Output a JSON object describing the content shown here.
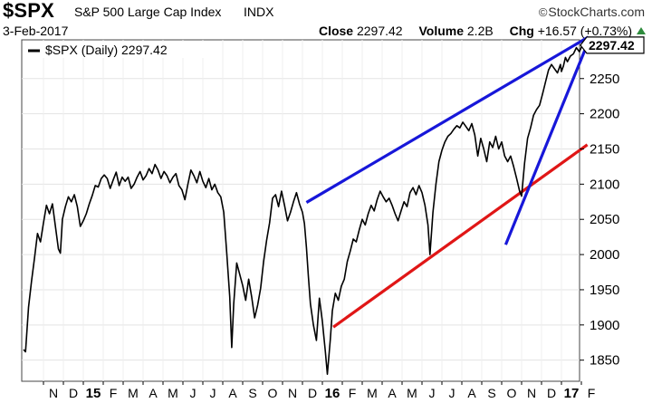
{
  "header": {
    "ticker": "$SPX",
    "index_name": "S&P 500 Large Cap Index",
    "index_type": "INDX",
    "brand": "StockCharts.com",
    "date": "3-Feb-2017",
    "close_label": "Close",
    "close_value": "2297.42",
    "volume_label": "Volume",
    "volume_value": "2.2B",
    "chg_label": "Chg",
    "chg_value": "+16.57 (+0.73%)",
    "chg_direction_icon": "up-triangle-icon",
    "chg_color": "#2e8b3d"
  },
  "chart_data": {
    "type": "line",
    "legend": "$SPX (Daily) 2297.42",
    "legend_placement": "top-left",
    "last_value_label": "2297.42",
    "y_axis_side": "right",
    "ylim": [
      1820,
      2305
    ],
    "y_ticks": [
      1850,
      1900,
      1950,
      2000,
      2050,
      2100,
      2150,
      2200,
      2250
    ],
    "x_range": [
      0,
      27.3
    ],
    "x_ticks": [
      {
        "m": 1,
        "label": "N"
      },
      {
        "m": 2,
        "label": "D"
      },
      {
        "m": 3,
        "label": "15",
        "year": true
      },
      {
        "m": 4,
        "label": "F"
      },
      {
        "m": 5,
        "label": "M"
      },
      {
        "m": 6,
        "label": "A"
      },
      {
        "m": 7,
        "label": "M"
      },
      {
        "m": 8,
        "label": "J"
      },
      {
        "m": 9,
        "label": "J"
      },
      {
        "m": 10,
        "label": "A"
      },
      {
        "m": 11,
        "label": "S"
      },
      {
        "m": 12,
        "label": "O"
      },
      {
        "m": 13,
        "label": "N"
      },
      {
        "m": 14,
        "label": "D"
      },
      {
        "m": 15,
        "label": "16",
        "year": true
      },
      {
        "m": 16,
        "label": "F"
      },
      {
        "m": 17,
        "label": "M"
      },
      {
        "m": 18,
        "label": "A"
      },
      {
        "m": 19,
        "label": "M"
      },
      {
        "m": 20,
        "label": "J"
      },
      {
        "m": 21,
        "label": "J"
      },
      {
        "m": 22,
        "label": "A"
      },
      {
        "m": 23,
        "label": "S"
      },
      {
        "m": 24,
        "label": "O"
      },
      {
        "m": 25,
        "label": "N"
      },
      {
        "m": 26,
        "label": "D"
      },
      {
        "m": 27,
        "label": "17",
        "year": true
      },
      {
        "m": 28,
        "label": "F"
      }
    ],
    "series": [
      {
        "color": "#000000",
        "points": [
          [
            0.0,
            1865
          ],
          [
            0.1,
            1862
          ],
          [
            0.25,
            1925
          ],
          [
            0.4,
            1962
          ],
          [
            0.55,
            1995
          ],
          [
            0.7,
            2030
          ],
          [
            0.85,
            2018
          ],
          [
            1.0,
            2045
          ],
          [
            1.15,
            2070
          ],
          [
            1.3,
            2058
          ],
          [
            1.45,
            2072
          ],
          [
            1.6,
            2040
          ],
          [
            1.75,
            2008
          ],
          [
            1.85,
            2002
          ],
          [
            1.95,
            2050
          ],
          [
            2.1,
            2068
          ],
          [
            2.25,
            2082
          ],
          [
            2.4,
            2075
          ],
          [
            2.55,
            2085
          ],
          [
            2.7,
            2068
          ],
          [
            2.85,
            2040
          ],
          [
            3.0,
            2048
          ],
          [
            3.15,
            2058
          ],
          [
            3.3,
            2072
          ],
          [
            3.45,
            2084
          ],
          [
            3.6,
            2098
          ],
          [
            3.75,
            2096
          ],
          [
            3.9,
            2108
          ],
          [
            4.05,
            2113
          ],
          [
            4.2,
            2108
          ],
          [
            4.35,
            2094
          ],
          [
            4.5,
            2106
          ],
          [
            4.65,
            2117
          ],
          [
            4.8,
            2098
          ],
          [
            4.95,
            2110
          ],
          [
            5.1,
            2104
          ],
          [
            5.25,
            2110
          ],
          [
            5.4,
            2094
          ],
          [
            5.55,
            2100
          ],
          [
            5.7,
            2110
          ],
          [
            5.85,
            2118
          ],
          [
            6.0,
            2106
          ],
          [
            6.15,
            2112
          ],
          [
            6.3,
            2122
          ],
          [
            6.45,
            2115
          ],
          [
            6.6,
            2128
          ],
          [
            6.75,
            2120
          ],
          [
            6.9,
            2108
          ],
          [
            7.05,
            2118
          ],
          [
            7.2,
            2112
          ],
          [
            7.35,
            2102
          ],
          [
            7.5,
            2110
          ],
          [
            7.65,
            2115
          ],
          [
            7.8,
            2098
          ],
          [
            7.95,
            2092
          ],
          [
            8.1,
            2078
          ],
          [
            8.25,
            2100
          ],
          [
            8.4,
            2120
          ],
          [
            8.55,
            2112
          ],
          [
            8.7,
            2102
          ],
          [
            8.85,
            2118
          ],
          [
            9.0,
            2104
          ],
          [
            9.15,
            2095
          ],
          [
            9.3,
            2108
          ],
          [
            9.45,
            2092
          ],
          [
            9.6,
            2100
          ],
          [
            9.75,
            2088
          ],
          [
            9.9,
            2082
          ],
          [
            10.05,
            2060
          ],
          [
            10.2,
            2002
          ],
          [
            10.35,
            1940
          ],
          [
            10.45,
            1868
          ],
          [
            10.55,
            1930
          ],
          [
            10.7,
            1988
          ],
          [
            10.85,
            1972
          ],
          [
            11.0,
            1956
          ],
          [
            11.15,
            1935
          ],
          [
            11.3,
            1965
          ],
          [
            11.45,
            1940
          ],
          [
            11.6,
            1910
          ],
          [
            11.75,
            1928
          ],
          [
            11.9,
            1952
          ],
          [
            12.05,
            1990
          ],
          [
            12.2,
            2020
          ],
          [
            12.35,
            2045
          ],
          [
            12.5,
            2080
          ],
          [
            12.65,
            2085
          ],
          [
            12.8,
            2068
          ],
          [
            12.95,
            2090
          ],
          [
            13.1,
            2070
          ],
          [
            13.25,
            2048
          ],
          [
            13.4,
            2060
          ],
          [
            13.55,
            2075
          ],
          [
            13.7,
            2088
          ],
          [
            13.85,
            2072
          ],
          [
            14.0,
            2060
          ],
          [
            14.1,
            2044
          ],
          [
            14.2,
            2010
          ],
          [
            14.3,
            1968
          ],
          [
            14.4,
            1930
          ],
          [
            14.55,
            1900
          ],
          [
            14.7,
            1878
          ],
          [
            14.85,
            1938
          ],
          [
            15.0,
            1905
          ],
          [
            15.15,
            1862
          ],
          [
            15.25,
            1830
          ],
          [
            15.4,
            1880
          ],
          [
            15.5,
            1920
          ],
          [
            15.65,
            1945
          ],
          [
            15.8,
            1935
          ],
          [
            15.95,
            1955
          ],
          [
            16.1,
            1965
          ],
          [
            16.25,
            1990
          ],
          [
            16.4,
            2005
          ],
          [
            16.55,
            2022
          ],
          [
            16.7,
            2018
          ],
          [
            16.85,
            2035
          ],
          [
            17.0,
            2050
          ],
          [
            17.15,
            2042
          ],
          [
            17.3,
            2058
          ],
          [
            17.45,
            2070
          ],
          [
            17.6,
            2062
          ],
          [
            17.75,
            2078
          ],
          [
            17.9,
            2090
          ],
          [
            18.05,
            2082
          ],
          [
            18.2,
            2075
          ],
          [
            18.35,
            2080
          ],
          [
            18.5,
            2070
          ],
          [
            18.65,
            2058
          ],
          [
            18.8,
            2048
          ],
          [
            18.95,
            2062
          ],
          [
            19.1,
            2075
          ],
          [
            19.25,
            2068
          ],
          [
            19.4,
            2088
          ],
          [
            19.55,
            2095
          ],
          [
            19.7,
            2085
          ],
          [
            19.85,
            2098
          ],
          [
            20.0,
            2088
          ],
          [
            20.15,
            2070
          ],
          [
            20.3,
            2042
          ],
          [
            20.4,
            2000
          ],
          [
            20.55,
            2060
          ],
          [
            20.7,
            2100
          ],
          [
            20.85,
            2132
          ],
          [
            21.0,
            2148
          ],
          [
            21.15,
            2160
          ],
          [
            21.3,
            2168
          ],
          [
            21.45,
            2172
          ],
          [
            21.6,
            2178
          ],
          [
            21.75,
            2183
          ],
          [
            21.9,
            2180
          ],
          [
            22.05,
            2188
          ],
          [
            22.2,
            2182
          ],
          [
            22.35,
            2176
          ],
          [
            22.5,
            2186
          ],
          [
            22.65,
            2170
          ],
          [
            22.8,
            2140
          ],
          [
            22.95,
            2165
          ],
          [
            23.1,
            2150
          ],
          [
            23.25,
            2132
          ],
          [
            23.4,
            2160
          ],
          [
            23.55,
            2152
          ],
          [
            23.7,
            2168
          ],
          [
            23.85,
            2150
          ],
          [
            24.0,
            2160
          ],
          [
            24.15,
            2140
          ],
          [
            24.3,
            2132
          ],
          [
            24.45,
            2140
          ],
          [
            24.6,
            2125
          ],
          [
            24.75,
            2108
          ],
          [
            24.9,
            2090
          ],
          [
            25.0,
            2083
          ],
          [
            25.15,
            2130
          ],
          [
            25.3,
            2165
          ],
          [
            25.45,
            2180
          ],
          [
            25.6,
            2198
          ],
          [
            25.75,
            2206
          ],
          [
            25.9,
            2212
          ],
          [
            26.05,
            2228
          ],
          [
            26.2,
            2245
          ],
          [
            26.35,
            2262
          ],
          [
            26.5,
            2270
          ],
          [
            26.65,
            2264
          ],
          [
            26.8,
            2258
          ],
          [
            26.95,
            2270
          ],
          [
            27.0,
            2260
          ],
          [
            27.1,
            2268
          ],
          [
            27.2,
            2280
          ],
          [
            27.3,
            2274
          ],
          [
            27.45,
            2282
          ],
          [
            27.6,
            2285
          ],
          [
            27.75,
            2294
          ],
          [
            27.9,
            2288
          ],
          [
            28.05,
            2297.42
          ]
        ]
      }
    ],
    "annotations": [
      {
        "type": "trendline",
        "color": "#1717d9",
        "from": [
          14.2,
          2074
        ],
        "to": [
          28.35,
          2309
        ]
      },
      {
        "type": "trendline",
        "color": "#e01616",
        "from": [
          15.55,
          1897
        ],
        "to": [
          28.3,
          2156
        ]
      },
      {
        "type": "trendline",
        "color": "#1717d9",
        "from": [
          24.2,
          2014
        ],
        "to": [
          28.2,
          2292
        ]
      }
    ]
  }
}
